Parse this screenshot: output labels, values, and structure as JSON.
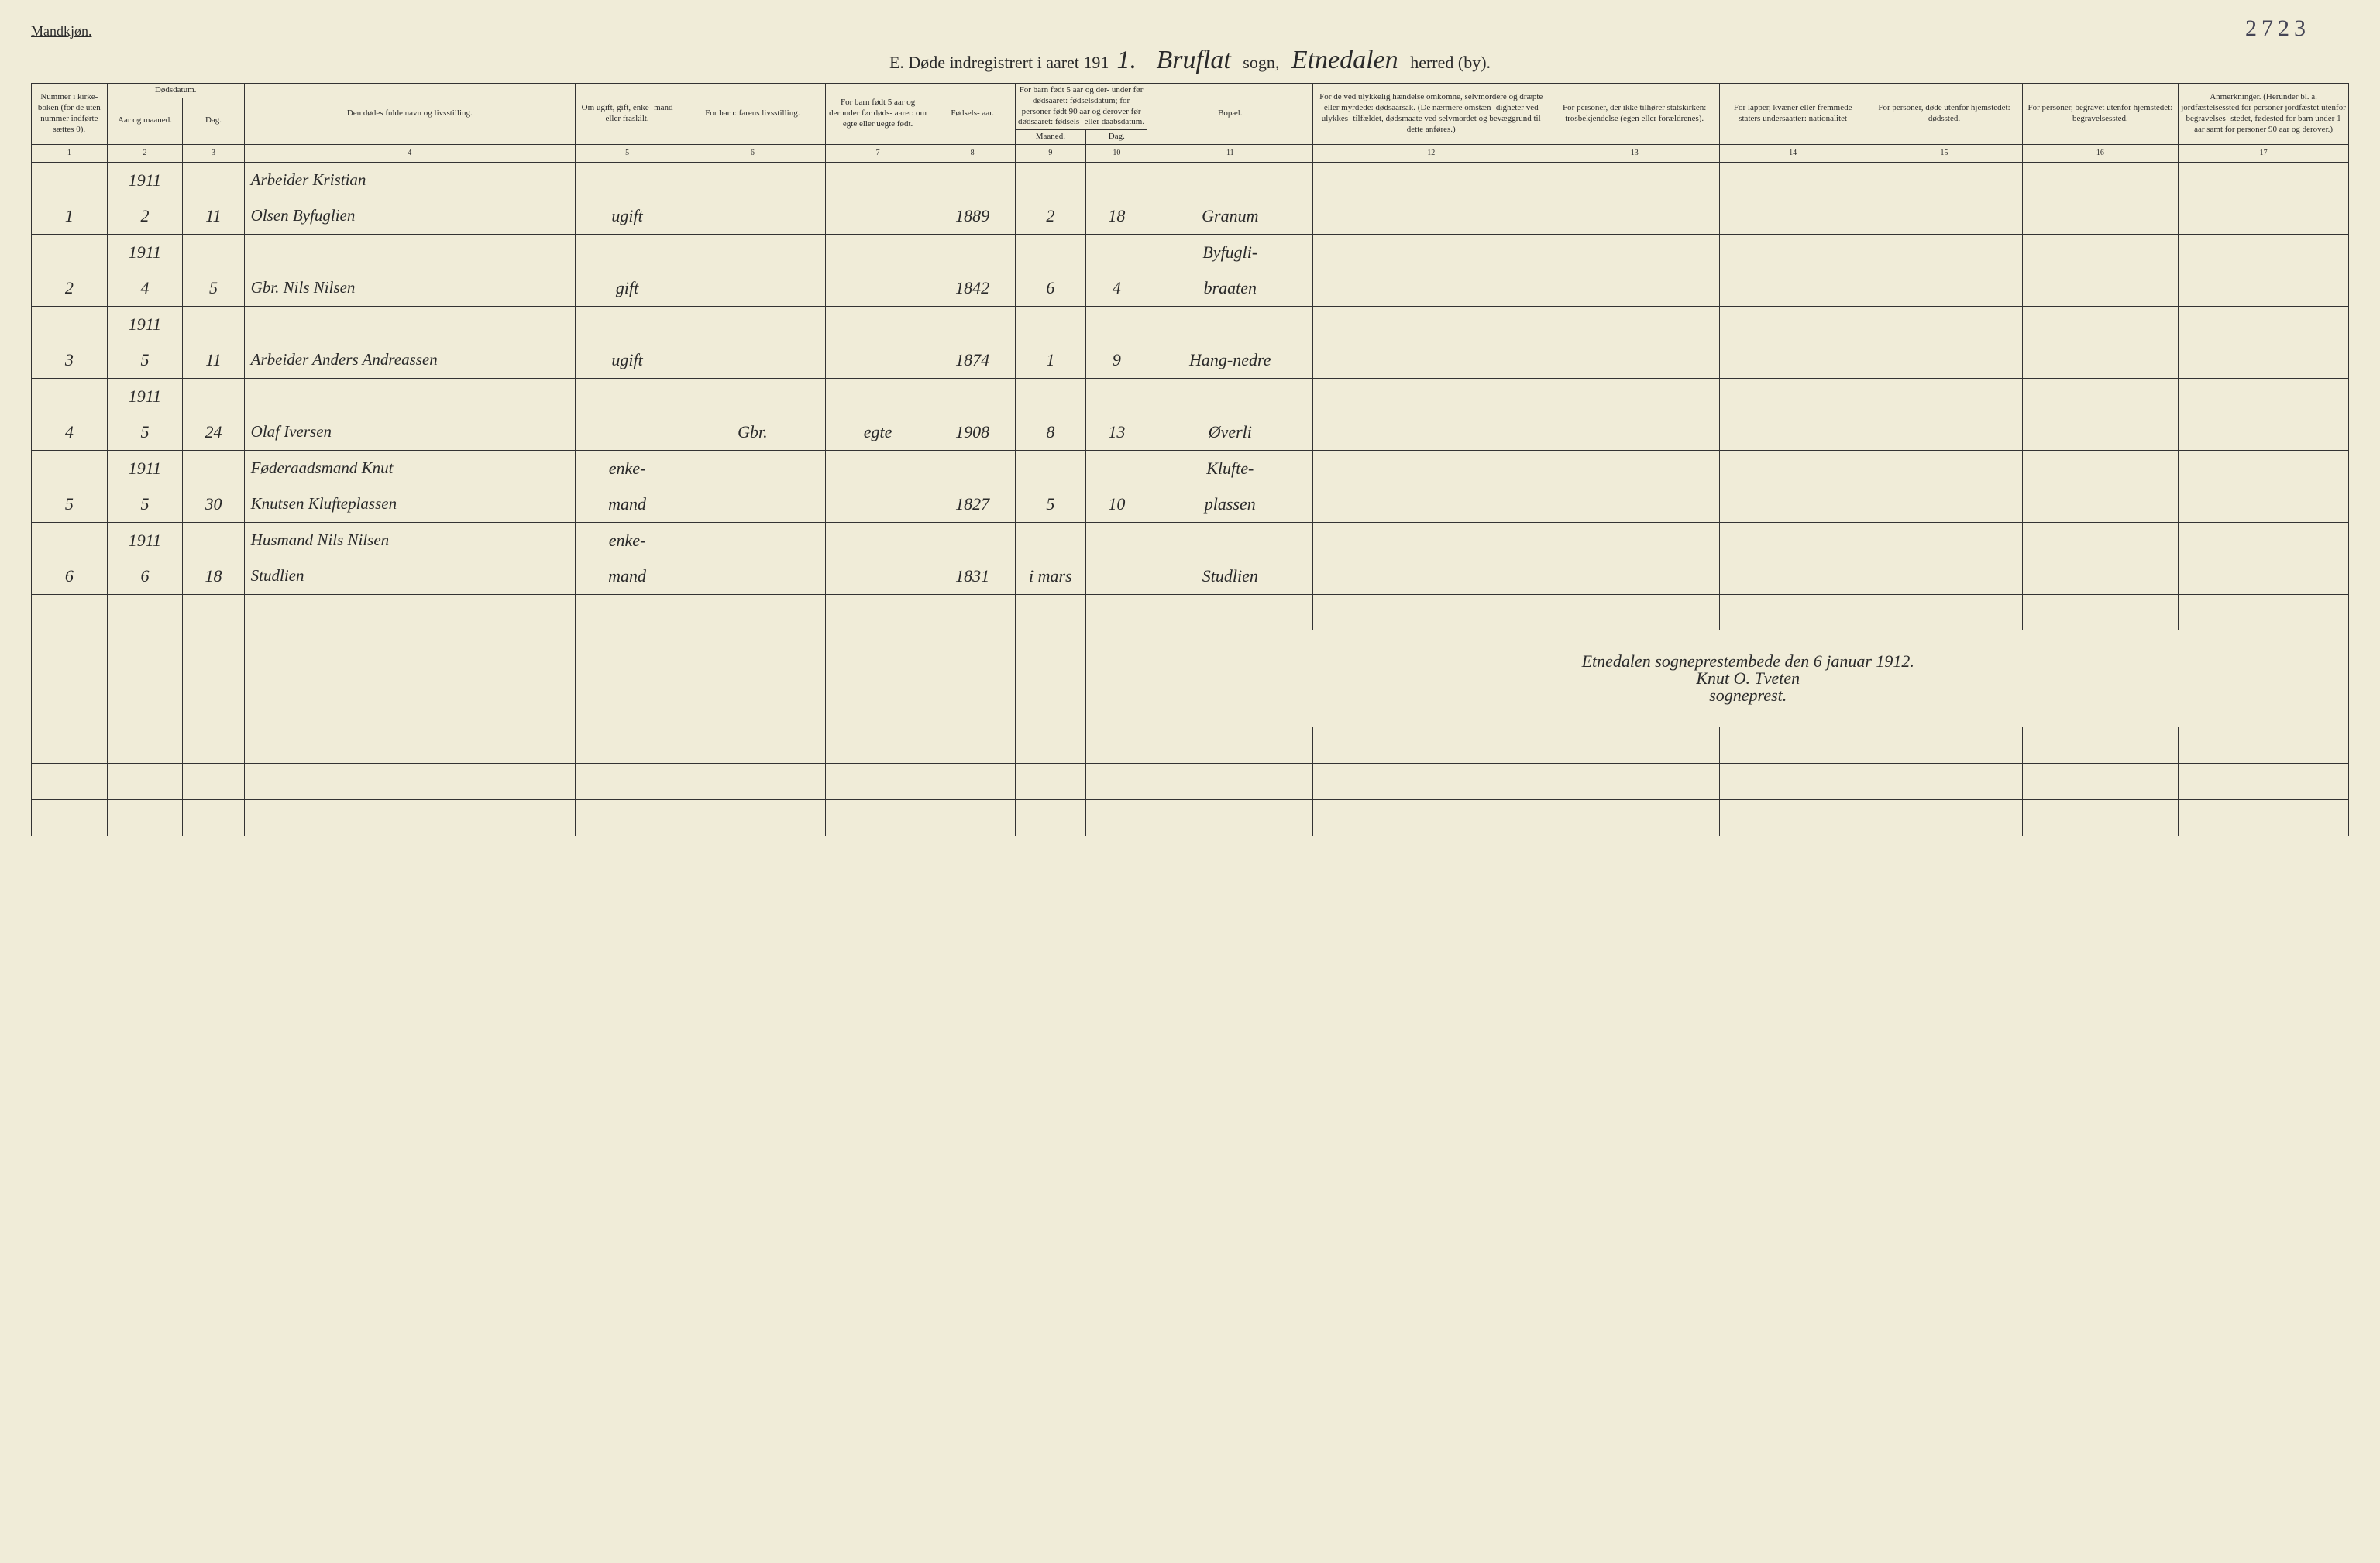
{
  "header": {
    "gender_label": "Mandkjøn.",
    "page_number": "2723",
    "title_prefix": "E.  Døde indregistrert i aaret 191",
    "year_suffix": "1.",
    "sogn_value": "Bruflat",
    "sogn_label": "sogn,",
    "herred_value": "Etnedalen",
    "herred_label": "herred (by)."
  },
  "columns": {
    "c1": "Nummer i kirke- boken (for de uten nummer indførte sættes 0).",
    "c2a": "Dødsdatum.",
    "c2b_year": "Aar og maaned.",
    "c2b_day": "Dag.",
    "c4": "Den dødes fulde navn og livsstilling.",
    "c5": "Om ugift, gift, enke- mand eller fraskilt.",
    "c6": "For barn: farens livsstilling.",
    "c7": "For barn født 5 aar og derunder før døds- aaret: om egte eller uegte født.",
    "c8": "Fødsels- aar.",
    "c9_10_top": "For barn født 5 aar og der- under før dødsaaret: fødselsdatum; for personer født 90 aar og derover før dødsaaret: fødsels- eller daabsdatum.",
    "c9": "Maaned.",
    "c10": "Dag.",
    "c11": "Bopæl.",
    "c12": "For de ved ulykkelig hændelse omkomne, selvmordere og dræpte eller myrdede: dødsaarsak. (De nærmere omstæn- digheter ved ulykkes- tilfældet, dødsmaate ved selvmordet og bevæggrund til dette anføres.)",
    "c13": "For personer, der ikke tilhører statskirken: trosbekjendelse (egen eller forældrenes).",
    "c14": "For lapper, kvæner eller fremmede staters undersaatter: nationalitet",
    "c15": "For personer, døde utenfor hjemstedet: dødssted.",
    "c16": "For personer, begravet utenfor hjemstedet: begravelsessted.",
    "c17": "Anmerkninger. (Herunder bl. a. jordfæstelsessted for personer jordfæstet utenfor begravelses- stedet, fødested for barn under 1 aar samt for personer 90 aar og derover.)"
  },
  "colnums": [
    "1",
    "2",
    "3",
    "4",
    "5",
    "6",
    "7",
    "8",
    "9",
    "10",
    "11",
    "12",
    "13",
    "14",
    "15",
    "16",
    "17"
  ],
  "rows": [
    {
      "num": "",
      "yr": "1911",
      "day": "",
      "name": "Arbeider Kristian",
      "stat": "",
      "far": "",
      "egte": "",
      "faar": "",
      "fm": "",
      "fd": "",
      "bopael": ""
    },
    {
      "num": "1",
      "yr": "2",
      "day": "11",
      "name": "Olsen Byfuglien",
      "stat": "ugift",
      "far": "",
      "egte": "",
      "faar": "1889",
      "fm": "2",
      "fd": "18",
      "bopael": "Granum"
    },
    {
      "num": "",
      "yr": "1911",
      "day": "",
      "name": "",
      "stat": "",
      "far": "",
      "egte": "",
      "faar": "",
      "fm": "",
      "fd": "",
      "bopael": "Byfugli-"
    },
    {
      "num": "2",
      "yr": "4",
      "day": "5",
      "name": "Gbr. Nils Nilsen",
      "stat": "gift",
      "far": "",
      "egte": "",
      "faar": "1842",
      "fm": "6",
      "fd": "4",
      "bopael": "braaten"
    },
    {
      "num": "",
      "yr": "1911",
      "day": "",
      "name": "",
      "stat": "",
      "far": "",
      "egte": "",
      "faar": "",
      "fm": "",
      "fd": "",
      "bopael": ""
    },
    {
      "num": "3",
      "yr": "5",
      "day": "11",
      "name": "Arbeider Anders Andreassen",
      "stat": "ugift",
      "far": "",
      "egte": "",
      "faar": "1874",
      "fm": "1",
      "fd": "9",
      "bopael": "Hang-nedre"
    },
    {
      "num": "",
      "yr": "1911",
      "day": "",
      "name": "",
      "stat": "",
      "far": "",
      "egte": "",
      "faar": "",
      "fm": "",
      "fd": "",
      "bopael": ""
    },
    {
      "num": "4",
      "yr": "5",
      "day": "24",
      "name": "Olaf Iversen",
      "stat": "",
      "far": "Gbr.",
      "egte": "egte",
      "faar": "1908",
      "fm": "8",
      "fd": "13",
      "bopael": "Øverli"
    },
    {
      "num": "",
      "yr": "1911",
      "day": "",
      "name": "Føderaadsmand Knut",
      "stat": "enke-",
      "far": "",
      "egte": "",
      "faar": "",
      "fm": "",
      "fd": "",
      "bopael": "Klufte-"
    },
    {
      "num": "5",
      "yr": "5",
      "day": "30",
      "name": "Knutsen Klufteplassen",
      "stat": "mand",
      "far": "",
      "egte": "",
      "faar": "1827",
      "fm": "5",
      "fd": "10",
      "bopael": "plassen"
    },
    {
      "num": "",
      "yr": "1911",
      "day": "",
      "name": "Husmand Nils Nilsen",
      "stat": "enke-",
      "far": "",
      "egte": "",
      "faar": "",
      "fm": "",
      "fd": "",
      "bopael": ""
    },
    {
      "num": "6",
      "yr": "6",
      "day": "18",
      "name": "Studlien",
      "stat": "mand",
      "far": "",
      "egte": "",
      "faar": "1831",
      "fm": "i mars",
      "fd": "",
      "bopael": "Studlien"
    }
  ],
  "signature": {
    "line1": "Etnedalen sogneprestembede den 6 januar 1912.",
    "line2": "Knut O. Tveten",
    "line3": "sogneprest."
  },
  "layout": {
    "col_widths_pct": [
      3.2,
      3.2,
      2.6,
      14.0,
      4.4,
      6.2,
      4.4,
      3.6,
      3.0,
      2.6,
      7.0,
      10.0,
      7.2,
      6.2,
      6.6,
      6.6,
      7.2
    ]
  }
}
